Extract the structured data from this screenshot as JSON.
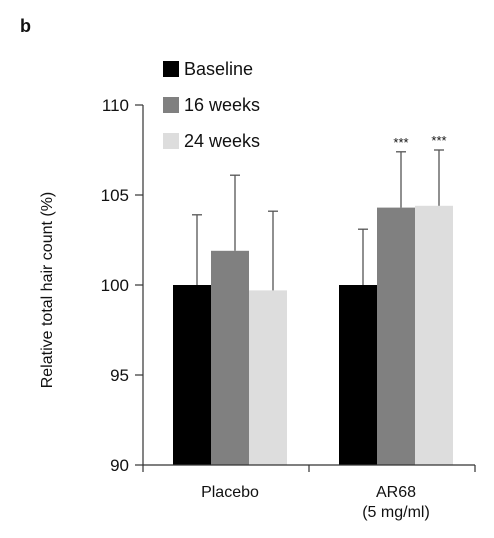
{
  "panel_label": "b",
  "chart_data": {
    "type": "bar",
    "title": "",
    "xlabel": "",
    "ylabel": "Relative total hair count (%)",
    "ylim": [
      90,
      110
    ],
    "yticks": [
      90,
      95,
      100,
      105,
      110
    ],
    "categories": [
      {
        "lines": [
          "Placebo"
        ]
      },
      {
        "lines": [
          "AR68",
          "(5 mg/ml)"
        ]
      }
    ],
    "series": [
      {
        "name": "Baseline",
        "color": "#000000",
        "values": [
          100,
          100
        ],
        "error": [
          3.9,
          3.1
        ],
        "significance": [
          "",
          ""
        ]
      },
      {
        "name": "16 weeks",
        "color": "#808080",
        "values": [
          101.9,
          104.3
        ],
        "error": [
          4.2,
          3.1
        ],
        "significance": [
          "",
          "***"
        ]
      },
      {
        "name": "24 weeks",
        "color": "#dddddd",
        "values": [
          99.7,
          104.4
        ],
        "error": [
          4.4,
          3.1
        ],
        "significance": [
          "",
          "***"
        ]
      }
    ],
    "legend": "top-left"
  }
}
